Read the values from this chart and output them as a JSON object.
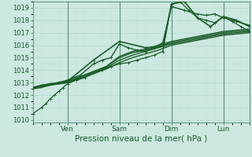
{
  "title": "",
  "xlabel": "Pression niveau de la mer( hPa )",
  "ylim": [
    1009.8,
    1019.5
  ],
  "xlim": [
    0,
    100
  ],
  "yticks": [
    1010,
    1011,
    1012,
    1013,
    1014,
    1015,
    1016,
    1017,
    1018,
    1019
  ],
  "xtick_positions": [
    16,
    40,
    64,
    88
  ],
  "xtick_labels": [
    "Ven",
    "Sam",
    "Dim",
    "Lun"
  ],
  "vline_positions": [
    16,
    40,
    64,
    88
  ],
  "bg_color": "#cce8e0",
  "grid_major_color": "#b8d8d0",
  "grid_minor_color": "#c4e0d8",
  "line_color": "#1a5c28",
  "lines": [
    {
      "x": [
        0,
        4,
        8,
        12,
        16,
        22,
        28,
        34,
        40,
        46,
        52,
        58,
        64,
        70,
        76,
        82,
        88,
        94,
        100
      ],
      "y": [
        1012.6,
        1012.8,
        1012.9,
        1013.0,
        1013.1,
        1013.4,
        1013.8,
        1014.2,
        1014.8,
        1015.2,
        1015.5,
        1015.8,
        1016.1,
        1016.3,
        1016.5,
        1016.7,
        1016.9,
        1017.0,
        1017.1
      ],
      "lw": 1.0,
      "marker": null
    },
    {
      "x": [
        0,
        4,
        8,
        12,
        16,
        22,
        28,
        34,
        40,
        46,
        52,
        58,
        64,
        70,
        76,
        82,
        88,
        94,
        100
      ],
      "y": [
        1012.6,
        1012.7,
        1012.8,
        1012.9,
        1013.0,
        1013.3,
        1013.7,
        1014.1,
        1014.6,
        1015.0,
        1015.3,
        1015.6,
        1016.0,
        1016.2,
        1016.4,
        1016.6,
        1016.8,
        1016.9,
        1017.0
      ],
      "lw": 1.0,
      "marker": null
    },
    {
      "x": [
        0,
        4,
        8,
        12,
        16,
        22,
        28,
        34,
        40,
        46,
        52,
        58,
        64,
        70,
        76,
        82,
        88,
        94,
        100
      ],
      "y": [
        1012.6,
        1012.7,
        1012.8,
        1013.0,
        1013.1,
        1013.5,
        1013.9,
        1014.3,
        1015.0,
        1015.4,
        1015.6,
        1015.9,
        1016.2,
        1016.4,
        1016.6,
        1016.8,
        1017.0,
        1017.1,
        1017.2
      ],
      "lw": 1.0,
      "marker": null
    },
    {
      "x": [
        0,
        4,
        8,
        12,
        16,
        22,
        28,
        34,
        40,
        46,
        52,
        58,
        64,
        70,
        76,
        82,
        88,
        94,
        100
      ],
      "y": [
        1012.5,
        1012.6,
        1012.8,
        1012.9,
        1013.0,
        1013.4,
        1013.8,
        1014.3,
        1015.1,
        1015.5,
        1015.7,
        1016.0,
        1016.3,
        1016.5,
        1016.7,
        1016.9,
        1017.1,
        1017.2,
        1017.3
      ],
      "lw": 1.0,
      "marker": null
    },
    {
      "x": [
        0,
        16,
        28,
        40,
        52,
        60,
        64,
        70,
        76,
        82,
        88,
        94,
        100
      ],
      "y": [
        1012.6,
        1013.1,
        1014.8,
        1016.3,
        1015.8,
        1015.9,
        1019.3,
        1019.5,
        1018.2,
        1017.5,
        1018.3,
        1018.0,
        1017.5
      ],
      "lw": 1.2,
      "marker": "+"
    },
    {
      "x": [
        0,
        8,
        12,
        16,
        22,
        28,
        32,
        36,
        40,
        44,
        48,
        52,
        56,
        60,
        64,
        70,
        76,
        80,
        84,
        88,
        94,
        100
      ],
      "y": [
        1012.6,
        1012.9,
        1013.0,
        1013.2,
        1013.6,
        1014.5,
        1014.8,
        1015.0,
        1016.1,
        1015.8,
        1015.6,
        1015.5,
        1015.8,
        1016.2,
        1019.1,
        1018.8,
        1018.5,
        1018.4,
        1018.5,
        1018.2,
        1017.9,
        1017.6
      ],
      "lw": 1.0,
      "marker": "+"
    },
    {
      "x": [
        0,
        4,
        6,
        8,
        10,
        12,
        14,
        16,
        20,
        24,
        28,
        32,
        36,
        40,
        44,
        48,
        52,
        56,
        60,
        64,
        68,
        72,
        76,
        80,
        84,
        88,
        92,
        96,
        100
      ],
      "y": [
        1010.5,
        1011.0,
        1011.3,
        1011.7,
        1012.0,
        1012.3,
        1012.6,
        1012.9,
        1013.2,
        1013.4,
        1013.8,
        1014.0,
        1014.3,
        1014.5,
        1014.6,
        1014.8,
        1015.0,
        1015.2,
        1015.5,
        1019.3,
        1019.5,
        1018.8,
        1018.2,
        1018.0,
        1017.8,
        1018.3,
        1017.9,
        1017.5,
        1017.1
      ],
      "lw": 0.9,
      "marker": "+"
    }
  ]
}
